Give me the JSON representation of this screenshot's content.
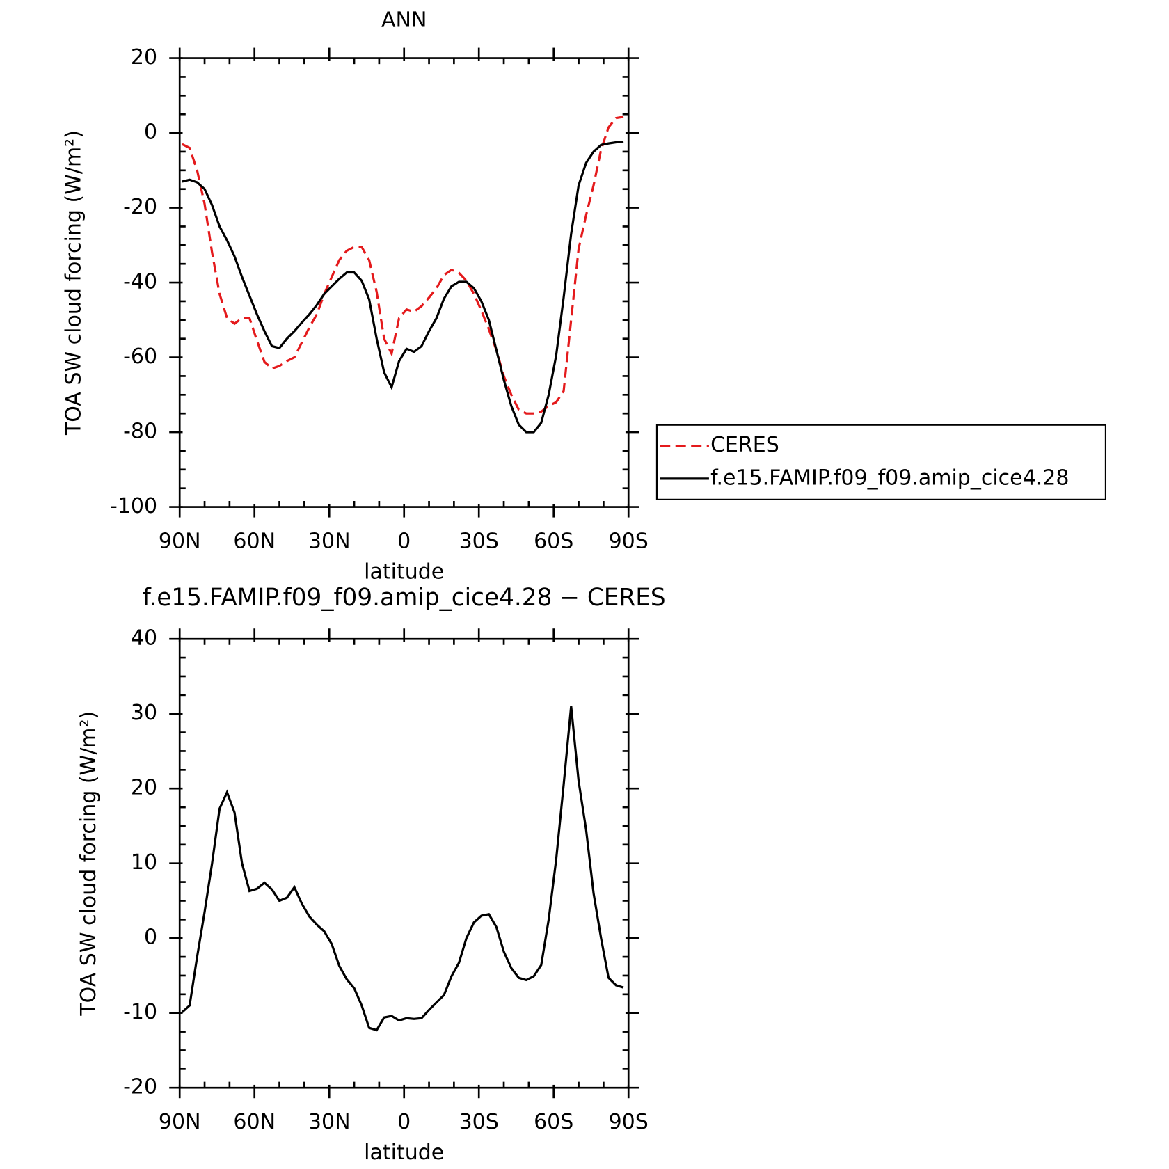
{
  "chart_data": [
    {
      "type": "line",
      "title": "ANN",
      "xlabel": "latitude",
      "ylabel": "TOA SW cloud forcing (W/m²)",
      "x": [
        89,
        86,
        83,
        80,
        77,
        74,
        71,
        68,
        65,
        62,
        59,
        56,
        53,
        50,
        47,
        44,
        41,
        38,
        35,
        32,
        29,
        26,
        23,
        20,
        17,
        14,
        11,
        8,
        5,
        2,
        -1,
        -4,
        -7,
        -10,
        -13,
        -16,
        -19,
        -22,
        -25,
        -28,
        -31,
        -34,
        -37,
        -40,
        -43,
        -46,
        -49,
        -52,
        -55,
        -58,
        -61,
        -64,
        -67,
        -70,
        -73,
        -76,
        -79,
        -82,
        -85,
        -88
      ],
      "series": [
        {
          "name": "CERES",
          "color": "#e41a1c",
          "line_style": "dashed",
          "values": [
            -3,
            -4,
            -10,
            -19,
            -32,
            -43,
            -49.5,
            -51,
            -49.5,
            -49.5,
            -55.5,
            -61.2,
            -63,
            -62.3,
            -61,
            -60,
            -56,
            -52,
            -48.5,
            -43,
            -38.5,
            -34,
            -31.5,
            -30.5,
            -30.5,
            -34,
            -42.5,
            -55,
            -59,
            -49.5,
            -47.2,
            -47.8,
            -46.3,
            -44,
            -41.5,
            -38,
            -36.6,
            -37.4,
            -39.5,
            -43,
            -47.5,
            -52.5,
            -58,
            -65,
            -70,
            -74,
            -75,
            -75,
            -74.5,
            -73,
            -72,
            -69,
            -50,
            -31,
            -22,
            -14,
            -4.5,
            1.5,
            4,
            4.3
          ]
        },
        {
          "name": "f.e15.FAMIP.f09_f09.amip_cice4.28",
          "color": "#000000",
          "line_style": "solid",
          "values": [
            -13,
            -12.5,
            -13.2,
            -15,
            -19.3,
            -25,
            -28.7,
            -33,
            -38.5,
            -43.5,
            -48.5,
            -53,
            -57,
            -57.5,
            -55,
            -53,
            -50.7,
            -48.5,
            -46,
            -43,
            -41,
            -39,
            -37.3,
            -37.3,
            -39.5,
            -44.5,
            -55,
            -64,
            -68,
            -61,
            -57.7,
            -58.5,
            -57,
            -53,
            -49.5,
            -44.3,
            -41,
            -39.8,
            -39.8,
            -41.5,
            -45,
            -50,
            -58,
            -66,
            -73,
            -78,
            -80,
            -80,
            -77.5,
            -70,
            -59.5,
            -44,
            -27,
            -14,
            -8,
            -5,
            -3.2,
            -2.8,
            -2.5,
            -2.3
          ]
        }
      ],
      "xlim": [
        90,
        -90
      ],
      "xticks": [
        {
          "value": 90,
          "label": "90N"
        },
        {
          "value": 60,
          "label": "60N"
        },
        {
          "value": 30,
          "label": "30N"
        },
        0,
        {
          "value": -30,
          "label": "30S"
        },
        {
          "value": -60,
          "label": "60S"
        },
        {
          "value": -90,
          "label": "90S"
        }
      ],
      "ylim": [
        -100,
        20
      ],
      "yticks": [
        -100,
        -80,
        -60,
        -40,
        -20,
        0,
        20
      ],
      "legend": "right"
    },
    {
      "type": "line",
      "title": "f.e15.FAMIP.f09_f09.amip_cice4.28 − CERES",
      "xlabel": "latitude",
      "ylabel": "TOA SW cloud forcing (W/m²)",
      "x": [
        89,
        86,
        83,
        80,
        77,
        74,
        71,
        68,
        65,
        62,
        59,
        56,
        53,
        50,
        47,
        44,
        41,
        38,
        35,
        32,
        29,
        26,
        23,
        20,
        17,
        14,
        11,
        8,
        5,
        2,
        -1,
        -4,
        -7,
        -10,
        -13,
        -16,
        -19,
        -22,
        -25,
        -28,
        -31,
        -34,
        -37,
        -40,
        -43,
        -46,
        -49,
        -52,
        -55,
        -58,
        -61,
        -64,
        -67,
        -70,
        -73,
        -76,
        -79,
        -82,
        -85,
        -88
      ],
      "series": [
        {
          "color": "#000000",
          "line_style": "solid",
          "values": [
            -9.9,
            -9,
            -2.5,
            3.5,
            10,
            17.3,
            19.5,
            16.8,
            10,
            6.3,
            6.6,
            7.4,
            6.5,
            5,
            5.4,
            6.8,
            4.6,
            2.9,
            1.8,
            0.9,
            -0.8,
            -3.7,
            -5.5,
            -6.7,
            -9,
            -12,
            -12.3,
            -10.6,
            -10.4,
            -11,
            -10.7,
            -10.8,
            -10.7,
            -9.6,
            -8.6,
            -7.6,
            -5.1,
            -3.3,
            0,
            2.1,
            3,
            3.2,
            1.5,
            -1.8,
            -4,
            -5.3,
            -5.6,
            -5.1,
            -3.6,
            2.5,
            10.5,
            20.5,
            31,
            21,
            14.5,
            6,
            0,
            -5.3,
            -6.3,
            -6.6
          ]
        }
      ],
      "xlim": [
        90,
        -90
      ],
      "xticks": [
        {
          "value": 90,
          "label": "90N"
        },
        {
          "value": 60,
          "label": "60N"
        },
        {
          "value": 30,
          "label": "30N"
        },
        0,
        {
          "value": -30,
          "label": "30S"
        },
        {
          "value": -60,
          "label": "60S"
        },
        {
          "value": -90,
          "label": "90S"
        }
      ],
      "ylim": [
        -20,
        40
      ],
      "yticks": [
        -20,
        -10,
        0,
        10,
        20,
        30,
        40
      ]
    }
  ]
}
